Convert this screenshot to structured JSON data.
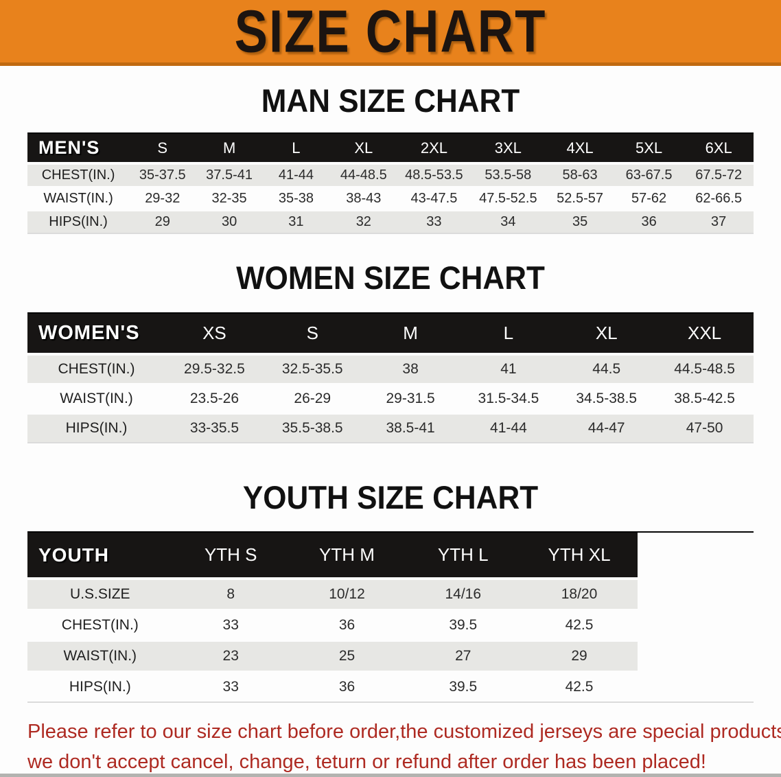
{
  "banner": {
    "title": "SIZE CHART"
  },
  "man": {
    "heading": "MAN SIZE CHART",
    "table": {
      "label": "MEN'S",
      "columns": [
        "S",
        "M",
        "L",
        "XL",
        "2XL",
        "3XL",
        "4XL",
        "5XL",
        "6XL"
      ],
      "rows": [
        {
          "label": "CHEST(IN.)",
          "values": [
            "35-37.5",
            "37.5-41",
            "41-44",
            "44-48.5",
            "48.5-53.5",
            "53.5-58",
            "58-63",
            "63-67.5",
            "67.5-72"
          ]
        },
        {
          "label": "WAIST(IN.)",
          "values": [
            "29-32",
            "32-35",
            "35-38",
            "38-43",
            "43-47.5",
            "47.5-52.5",
            "52.5-57",
            "57-62",
            "62-66.5"
          ]
        },
        {
          "label": "HIPS(IN.)",
          "values": [
            "29",
            "30",
            "31",
            "32",
            "33",
            "34",
            "35",
            "36",
            "37"
          ]
        }
      ]
    }
  },
  "women": {
    "heading": "WOMEN SIZE CHART",
    "table": {
      "label": "WOMEN'S",
      "columns": [
        "XS",
        "S",
        "M",
        "L",
        "XL",
        "XXL"
      ],
      "rows": [
        {
          "label": "CHEST(IN.)",
          "values": [
            "29.5-32.5",
            "32.5-35.5",
            "38",
            "41",
            "44.5",
            "44.5-48.5"
          ]
        },
        {
          "label": "WAIST(IN.)",
          "values": [
            "23.5-26",
            "26-29",
            "29-31.5",
            "31.5-34.5",
            "34.5-38.5",
            "38.5-42.5"
          ]
        },
        {
          "label": "HIPS(IN.)",
          "values": [
            "33-35.5",
            "35.5-38.5",
            "38.5-41",
            "41-44",
            "44-47",
            "47-50"
          ]
        }
      ]
    }
  },
  "youth": {
    "heading": "YOUTH SIZE CHART",
    "table": {
      "label": "YOUTH",
      "columns": [
        "YTH S",
        "YTH M",
        "YTH L",
        "YTH XL"
      ],
      "rows": [
        {
          "label": "U.S.SIZE",
          "values": [
            "8",
            "10/12",
            "14/16",
            "18/20"
          ]
        },
        {
          "label": "CHEST(IN.)",
          "values": [
            "33",
            "36",
            "39.5",
            "42.5"
          ]
        },
        {
          "label": "WAIST(IN.)",
          "values": [
            "23",
            "25",
            "27",
            "29"
          ]
        },
        {
          "label": "HIPS(IN.)",
          "values": [
            "33",
            "36",
            "39.5",
            "42.5"
          ]
        }
      ]
    }
  },
  "disclaimer": {
    "line1": "Please refer to our size chart before order,the customized jerseys are special products,",
    "line2": "we don't accept cancel, change, teturn or refund after order has been placed!"
  },
  "colors": {
    "banner_orange": "#E8821C",
    "banner_border": "#C06A10",
    "header_black": "#171514",
    "row_gray": "#E7E7E4",
    "disclaimer_red": "#AE2A22"
  }
}
